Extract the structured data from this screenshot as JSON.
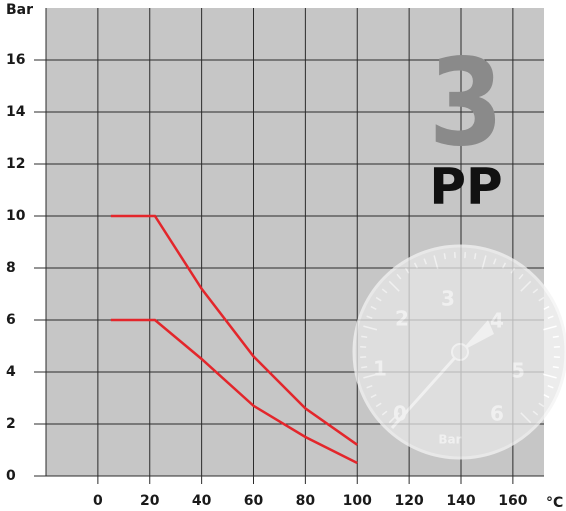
{
  "chart_data": {
    "type": "line",
    "y_label": "Bar",
    "x_label": "°C",
    "annotations": [
      "3",
      "PP"
    ],
    "x": [
      5,
      22,
      40,
      60,
      80,
      100
    ],
    "series": [
      {
        "color": "#e3262b",
        "values": [
          10,
          10,
          7.2,
          4.6,
          2.6,
          1.2
        ]
      },
      {
        "color": "#e3262b",
        "values": [
          6,
          6,
          4.5,
          2.7,
          1.5,
          0.5
        ]
      }
    ],
    "xlim": [
      -20,
      172
    ],
    "ylim": [
      0,
      18
    ],
    "xticks": [
      0,
      20,
      40,
      60,
      80,
      100,
      120,
      140,
      160
    ],
    "yticks": [
      0,
      2,
      4,
      6,
      8,
      10,
      12,
      14,
      16
    ],
    "grid": true
  },
  "gauge": {
    "labels": [
      "0",
      "1",
      "2",
      "3",
      "4",
      "5",
      "6"
    ],
    "unit": "Bar"
  }
}
